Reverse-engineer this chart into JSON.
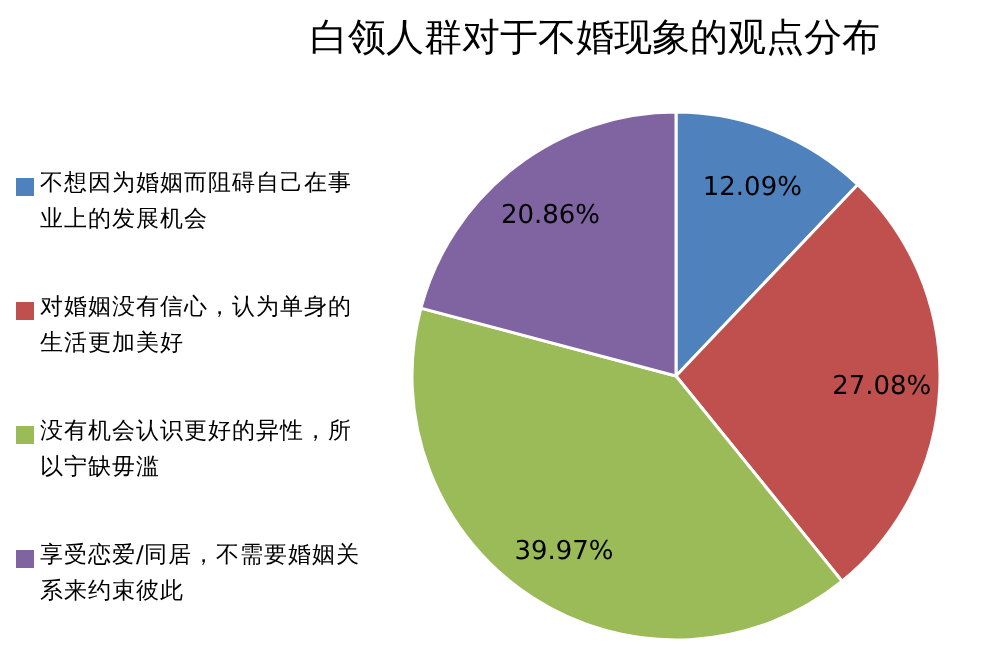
{
  "chart_data": {
    "type": "pie",
    "title": "白领人群对于不婚现象的观点分布",
    "categories": [
      "不想因为婚姻而阻碍自己在事业上的发展机会",
      "对婚姻没有信心，认为单身的生活更加美好",
      "没有机会认识更好的异性，所以宁缺毋滥",
      "享受恋爱/同居，不需要婚姻关系来约束彼此"
    ],
    "values": [
      12.09,
      27.08,
      39.97,
      20.86
    ],
    "colors": [
      "#4f81bd",
      "#c0504d",
      "#9bbb59",
      "#8064a2"
    ],
    "value_labels": [
      "12.09%",
      "27.08%",
      "39.97%",
      "20.86%"
    ],
    "legend": "left"
  }
}
